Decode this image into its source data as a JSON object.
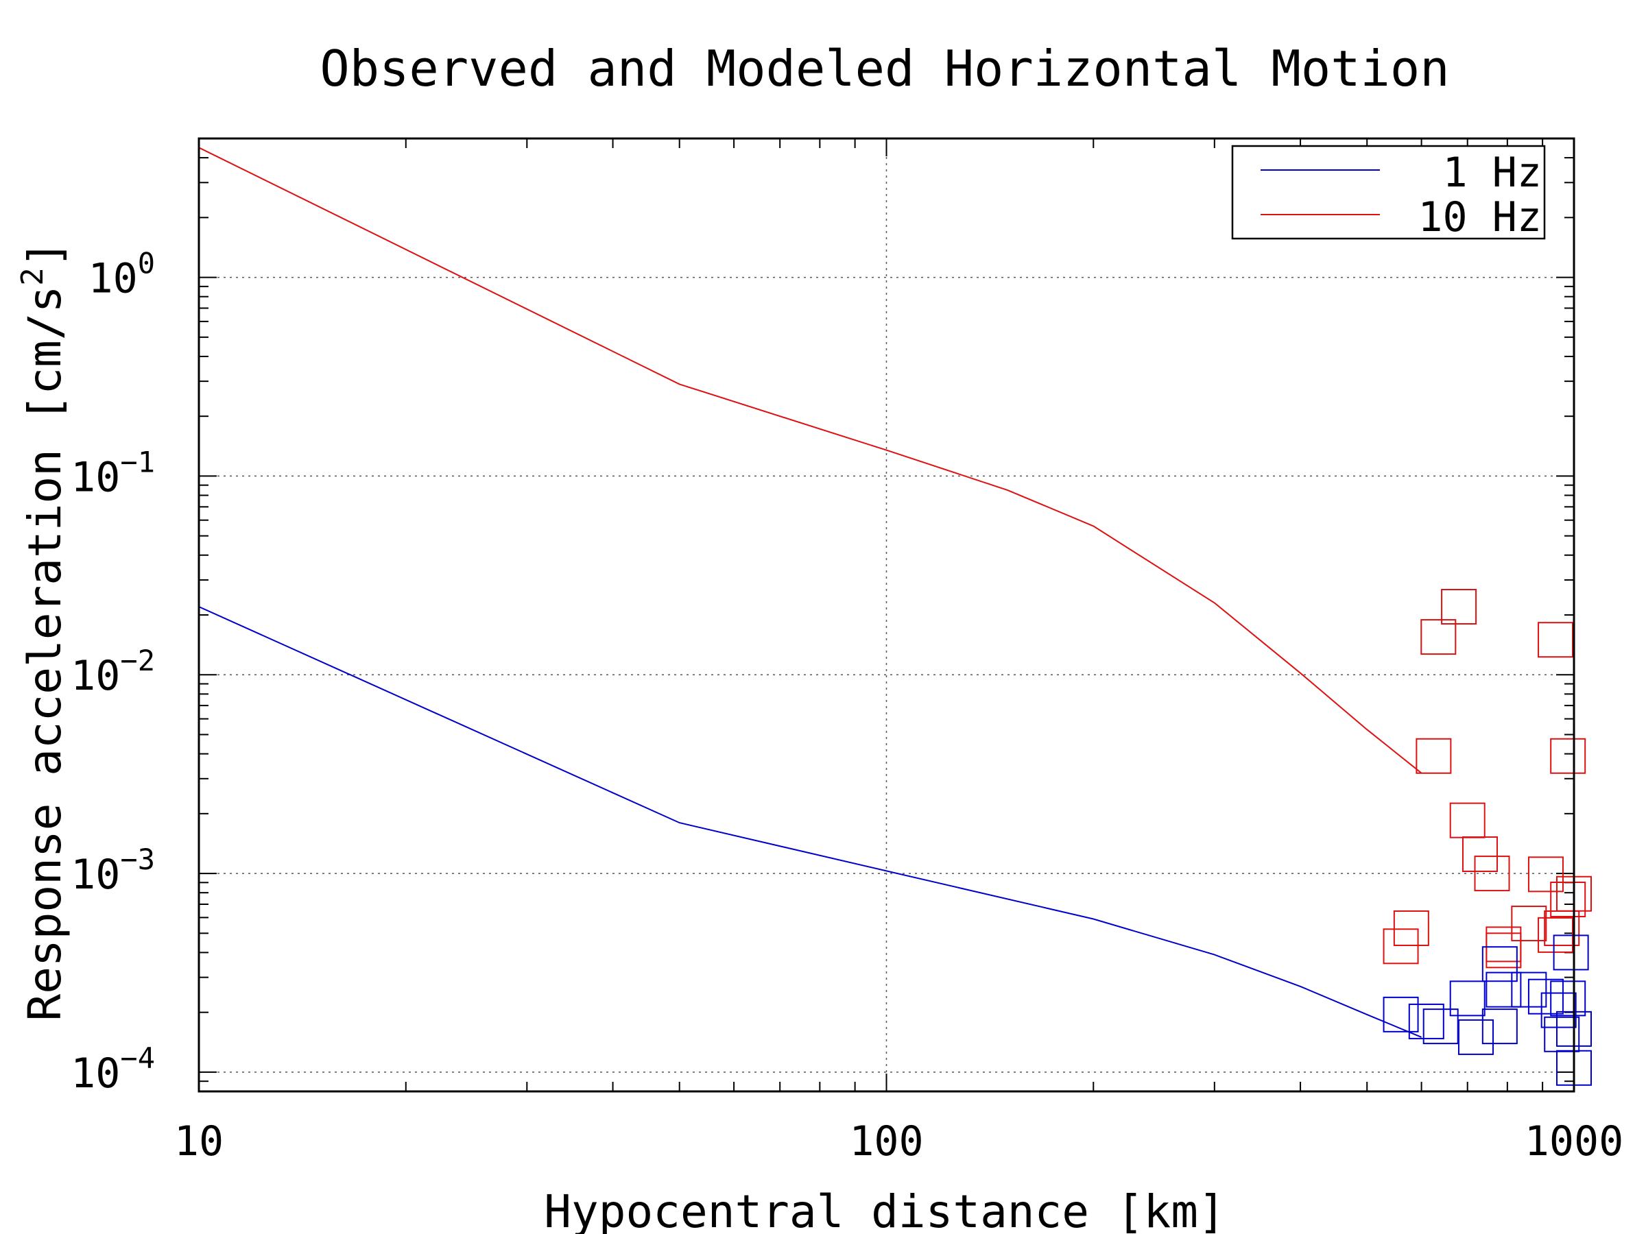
{
  "chart_data": {
    "type": "line",
    "title": "Observed and Modeled Horizontal Motion",
    "xlabel": "Hypocentral distance [km]",
    "ylabel": "Response acceleration [cm/s^2]",
    "ylabel_parts": {
      "main": "Response acceleration [cm/s",
      "sup": "2",
      "close": "]"
    },
    "x_scale": "log",
    "y_scale": "log",
    "xlim": [
      10,
      1000
    ],
    "ylim": [
      8e-05,
      5
    ],
    "x_ticks": [
      {
        "value": 10,
        "label": "10"
      },
      {
        "value": 100,
        "label": "100"
      },
      {
        "value": 1000,
        "label": "1000"
      }
    ],
    "y_ticks": [
      {
        "value": 1,
        "base": "10",
        "exp": "0"
      },
      {
        "value": 0.1,
        "base": "10",
        "exp": "−1"
      },
      {
        "value": 0.01,
        "base": "10",
        "exp": "−2"
      },
      {
        "value": 0.001,
        "base": "10",
        "exp": "−3"
      },
      {
        "value": 0.0001,
        "base": "10",
        "exp": "−4"
      }
    ],
    "grid": true,
    "legend_position": "top-right",
    "series": [
      {
        "name": "1 Hz",
        "color": "#0000cc",
        "kind": "model",
        "x": [
          10,
          50,
          100,
          200,
          300,
          400,
          500,
          600
        ],
        "y": [
          0.022,
          0.0018,
          0.00103,
          0.00059,
          0.00039,
          0.00027,
          0.000195,
          0.00015
        ]
      },
      {
        "name": "10 Hz",
        "color": "#dd1111",
        "kind": "model",
        "x": [
          10,
          50,
          100,
          150,
          200,
          300,
          400,
          500,
          600
        ],
        "y": [
          4.5,
          0.29,
          0.135,
          0.085,
          0.056,
          0.023,
          0.0102,
          0.0053,
          0.0032
        ]
      },
      {
        "name": "",
        "color": "#dd1111",
        "kind": "observed",
        "x": [
          680,
          635,
          560,
          625,
          700,
          730,
          760,
          580,
          790,
          860,
          910,
          960,
          940,
          940,
          980,
          980,
          1000,
          790
        ],
        "y": [
          0.022,
          0.0155,
          0.00043,
          0.0039,
          0.00185,
          0.00125,
          0.001,
          0.00053,
          0.00044,
          0.00056,
          0.00099,
          0.00053,
          0.00049,
          0.015,
          0.0039,
          0.00074,
          0.00079,
          0.00041
        ]
      },
      {
        "name": "",
        "color": "#0000cc",
        "kind": "observed",
        "x": [
          560,
          610,
          640,
          700,
          720,
          780,
          790,
          780,
          860,
          910,
          950,
          960,
          980,
          990,
          1000,
          1000
        ],
        "y": [
          0.000195,
          0.00018,
          0.00017,
          0.000235,
          0.00015,
          0.00035,
          0.00026,
          0.00017,
          0.00026,
          0.00024,
          0.000205,
          0.000155,
          0.000235,
          0.0004,
          0.000105,
          0.000165
        ]
      }
    ]
  }
}
